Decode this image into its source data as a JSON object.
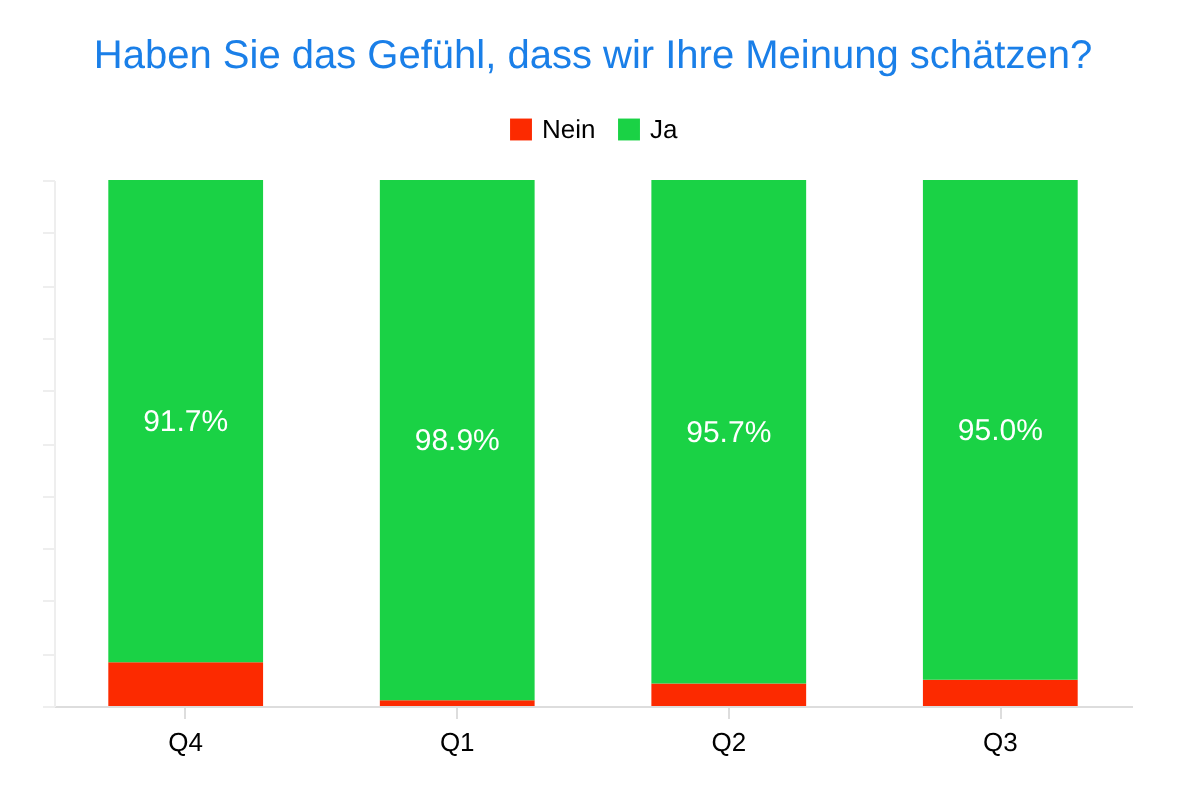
{
  "chart_data": {
    "type": "bar",
    "title": "Haben Sie das Gefühl, dass wir Ihre Meinung schätzen?",
    "categories": [
      "Q4",
      "Q1",
      "Q2",
      "Q3"
    ],
    "stacked": true,
    "ylim": [
      0,
      100
    ],
    "yticks": [
      {
        "value": 0,
        "label": null
      },
      {
        "value": 10,
        "label": null
      },
      {
        "value": 20,
        "label": null
      },
      {
        "value": 30,
        "label": null
      },
      {
        "value": 40,
        "label": null
      },
      {
        "value": 50,
        "label": null
      },
      {
        "value": 60,
        "label": null
      },
      {
        "value": 70,
        "label": null
      },
      {
        "value": 80,
        "label": null
      },
      {
        "value": 90,
        "label": null
      },
      {
        "value": 100,
        "label": null
      }
    ],
    "tick_labels": "x",
    "legend": "top",
    "grid": false,
    "series": [
      {
        "name": "Nein",
        "color": "#fc2a00",
        "values": [
          8.3,
          1.1,
          4.3,
          5.0
        ]
      },
      {
        "name": "Ja",
        "color": "#1ad245",
        "values": [
          91.7,
          98.9,
          95.7,
          95.0
        ],
        "value_labels": [
          "91.7%",
          "98.9%",
          "95.7%",
          "95.0%"
        ]
      }
    ]
  }
}
